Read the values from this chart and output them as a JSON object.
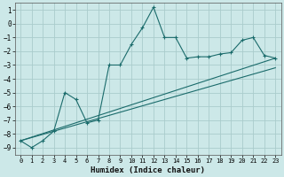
{
  "title": "",
  "xlabel": "Humidex (Indice chaleur)",
  "background_color": "#cce8e8",
  "grid_color": "#aacccc",
  "line_color": "#1a6b6b",
  "xlim": [
    -0.5,
    23.5
  ],
  "ylim": [
    -9.5,
    1.5
  ],
  "xticks": [
    0,
    1,
    2,
    3,
    4,
    5,
    6,
    7,
    8,
    9,
    10,
    11,
    12,
    13,
    14,
    15,
    16,
    17,
    18,
    19,
    20,
    21,
    22,
    23
  ],
  "yticks": [
    1,
    0,
    -1,
    -2,
    -3,
    -4,
    -5,
    -6,
    -7,
    -8,
    -9
  ],
  "series1_x": [
    0,
    1,
    2,
    3,
    4,
    5,
    6,
    7,
    8,
    9,
    10,
    11,
    12,
    13,
    14,
    15,
    16,
    17,
    18,
    19,
    20,
    21,
    22,
    23
  ],
  "series1_y": [
    -8.5,
    -9.0,
    -8.5,
    -7.8,
    -5.0,
    -5.5,
    -7.2,
    -7.0,
    -3.0,
    -3.0,
    -1.5,
    -0.3,
    1.2,
    -1.0,
    -1.0,
    -2.5,
    -2.4,
    -2.4,
    -2.2,
    -2.1,
    -1.2,
    -1.0,
    -2.3,
    -2.5
  ],
  "series3_x": [
    0,
    23
  ],
  "series3_y": [
    -8.5,
    -2.5
  ],
  "series4_x": [
    0,
    23
  ],
  "series4_y": [
    -8.5,
    -3.2
  ]
}
